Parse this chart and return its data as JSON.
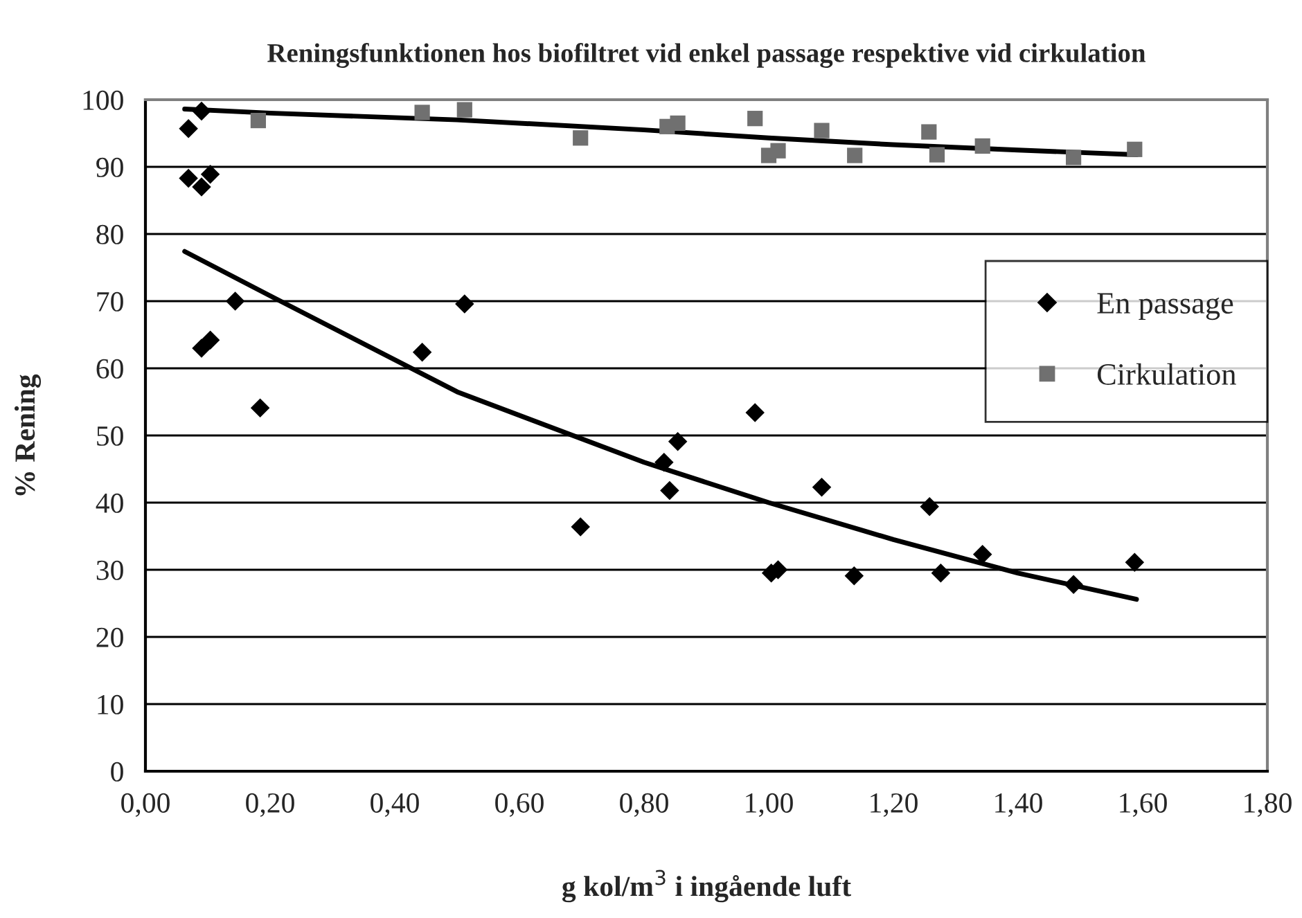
{
  "chart_data": {
    "type": "scatter",
    "title": "Reningsfunktionen hos biofiltret vid enkel passage respektive vid cirkulation",
    "xlabel": "g kol/m$^{3}$ i ingående luft",
    "ylabel": "% Rening",
    "xlim": [
      0,
      1.8
    ],
    "ylim": [
      0,
      100
    ],
    "xticks": [
      {
        "value": 0,
        "label": "0,00"
      },
      {
        "value": 0.2,
        "label": "0,20"
      },
      {
        "value": 0.4,
        "label": "0,40"
      },
      {
        "value": 0.6,
        "label": "0,60"
      },
      {
        "value": 0.8,
        "label": "0,80"
      },
      {
        "value": 1.0,
        "label": "1,00"
      },
      {
        "value": 1.2,
        "label": "1,20"
      },
      {
        "value": 1.4,
        "label": "1,40"
      },
      {
        "value": 1.6,
        "label": "1,60"
      },
      {
        "value": 1.8,
        "label": "1,80"
      }
    ],
    "yticks": [
      0,
      10,
      20,
      30,
      40,
      50,
      60,
      70,
      80,
      90,
      100
    ],
    "grid": "y",
    "legend": "right",
    "series": [
      {
        "name": "En passage",
        "marker": "diamond",
        "color": "#000000",
        "x": [
          0.069,
          0.069,
          0.09,
          0.09,
          0.104,
          0.09,
          0.104,
          0.144,
          0.184,
          0.444,
          0.512,
          0.698,
          0.832,
          0.841,
          0.854,
          0.978,
          1.004,
          1.015,
          1.085,
          1.137,
          1.258,
          1.276,
          1.343,
          1.489,
          1.587
        ],
        "values": [
          95.7,
          88.3,
          98.3,
          87.0,
          88.9,
          63.0,
          64.2,
          70.0,
          54.1,
          62.4,
          69.6,
          36.4,
          46.0,
          41.8,
          49.1,
          53.4,
          29.5,
          30.0,
          42.3,
          29.1,
          39.4,
          29.5,
          32.3,
          27.8,
          31.1
        ]
      },
      {
        "name": "Cirkulation",
        "marker": "square",
        "color": "#707070",
        "x": [
          0.181,
          0.444,
          0.512,
          0.698,
          0.837,
          0.854,
          0.978,
          1.0,
          1.015,
          1.085,
          1.138,
          1.257,
          1.27,
          1.343,
          1.489,
          1.587
        ],
        "values": [
          96.9,
          98.1,
          98.5,
          94.3,
          96.0,
          96.5,
          97.2,
          91.7,
          92.4,
          95.4,
          91.7,
          95.2,
          91.8,
          93.1,
          91.4,
          92.6
        ]
      },
      {
        "type": "line",
        "color": "#000000",
        "x": [
          0.063,
          0.2,
          0.5,
          0.8,
          1.0,
          1.2,
          1.4,
          1.59
        ],
        "values": [
          98.6,
          98.0,
          97.0,
          95.5,
          94.3,
          93.3,
          92.5,
          91.8
        ]
      },
      {
        "type": "line",
        "color": "#000000",
        "x": [
          0.063,
          0.2,
          0.5,
          0.8,
          1.0,
          1.2,
          1.4,
          1.59
        ],
        "values": [
          77.4,
          70.8,
          56.5,
          46.0,
          40.0,
          34.5,
          29.5,
          25.6
        ]
      }
    ]
  }
}
